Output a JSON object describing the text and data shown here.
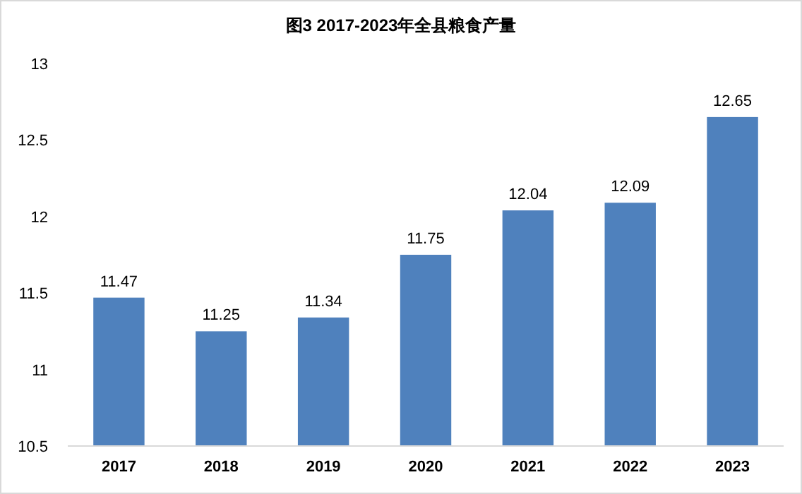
{
  "chart_data": {
    "type": "bar",
    "title": "图3 2017-2023年全县粮食产量",
    "categories": [
      "2017",
      "2018",
      "2019",
      "2020",
      "2021",
      "2022",
      "2023"
    ],
    "values": [
      11.47,
      11.25,
      11.34,
      11.75,
      12.04,
      12.09,
      12.65
    ],
    "color": "#4f81bd",
    "ylim": [
      10.5,
      13
    ],
    "yticks": [
      10.5,
      11,
      11.5,
      12,
      12.5,
      13
    ],
    "data_labels": true,
    "grid": false
  }
}
